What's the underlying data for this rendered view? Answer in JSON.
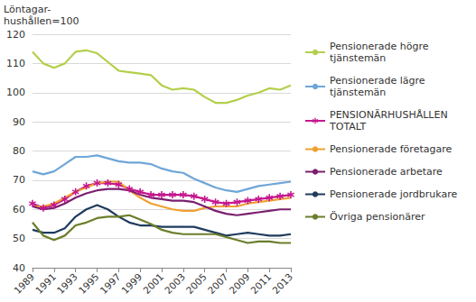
{
  "chart_data": {
    "type": "line",
    "y_label": "Löntagar-\nhushållen=100",
    "x": [
      1989,
      1990,
      1991,
      1992,
      1993,
      1994,
      1995,
      1996,
      1997,
      1998,
      1999,
      2000,
      2001,
      2002,
      2003,
      2004,
      2005,
      2006,
      2007,
      2008,
      2009,
      2010,
      2011,
      2012,
      2013
    ],
    "xlim": [
      1989,
      2013
    ],
    "xticks": [
      1989,
      1991,
      1993,
      1995,
      1997,
      1999,
      2001,
      2003,
      2005,
      2007,
      2009,
      2011,
      2013
    ],
    "ylim": [
      40,
      120
    ],
    "yticks": [
      40,
      50,
      60,
      70,
      80,
      90,
      100,
      110,
      120
    ],
    "grid": true,
    "legend": "right",
    "series": [
      {
        "name": "Pensionerade högre tjänstemän",
        "color": "#b3cf4b",
        "line_style": "solid",
        "values": [
          114,
          110,
          108.5,
          110,
          114,
          114.5,
          113.5,
          110.5,
          107.5,
          107,
          106.5,
          106,
          102.5,
          101,
          101.5,
          101,
          98.5,
          96.5,
          96.5,
          97.5,
          99,
          100,
          101.5,
          101,
          102.5
        ]
      },
      {
        "name": "Pensionerade lägre tjänstemän",
        "color": "#6fa6d8",
        "line_style": "solid",
        "values": [
          73,
          72,
          73,
          75.5,
          78,
          78,
          78.5,
          77.5,
          76.5,
          76,
          76,
          75.5,
          74,
          73,
          72.5,
          70.5,
          69,
          67.5,
          66.5,
          66,
          67,
          68,
          68.5,
          69,
          69.5
        ]
      },
      {
        "name": "PENSIONÄRHUSHÅLLEN TOTALT",
        "color": "#c4178e",
        "line_style": "solid",
        "marker": "asterisk",
        "values": [
          62,
          60.5,
          61.5,
          63.5,
          66,
          68,
          69,
          69,
          68.5,
          67,
          66,
          65,
          65,
          65,
          65,
          64.5,
          63.5,
          62.5,
          62,
          62.5,
          63,
          63.5,
          64,
          64.5,
          65
        ]
      },
      {
        "name": "Pensionerade företagare",
        "color": "#f0a033",
        "line_style": "solid",
        "values": [
          61,
          61,
          62,
          64,
          66,
          67.5,
          69,
          69.5,
          69.5,
          66.5,
          64,
          62,
          61,
          60,
          59.5,
          59.5,
          60.5,
          61,
          61,
          61,
          62,
          62.5,
          63,
          63.5,
          64
        ]
      },
      {
        "name": "Pensionerade arbetare",
        "color": "#7b1f6f",
        "line_style": "solid",
        "values": [
          61,
          60,
          60.5,
          62,
          64,
          65.5,
          66.5,
          67,
          67,
          66.5,
          65,
          64,
          63.5,
          63,
          63,
          62.5,
          61,
          59.5,
          58.5,
          58,
          58.5,
          59,
          59.5,
          60,
          60
        ]
      },
      {
        "name": "Pensionerade jordbrukare",
        "color": "#1f3b5e",
        "line_style": "solid",
        "values": [
          53,
          52,
          52,
          53.5,
          57.5,
          60,
          61.5,
          60,
          57.5,
          55.5,
          54.5,
          54.5,
          54,
          54,
          54,
          54,
          53,
          52,
          51,
          51.5,
          52,
          51.5,
          51,
          51,
          51.5
        ]
      },
      {
        "name": "Övriga pensionärer",
        "color": "#6b7e2a",
        "line_style": "solid",
        "values": [
          55.5,
          51,
          49.5,
          51,
          54.5,
          55.5,
          57,
          57.5,
          57.5,
          58,
          56.5,
          55,
          53,
          52,
          51.5,
          51.5,
          51.5,
          51.5,
          50.5,
          49.5,
          48.5,
          49,
          49,
          48.5,
          48.5
        ]
      }
    ]
  }
}
